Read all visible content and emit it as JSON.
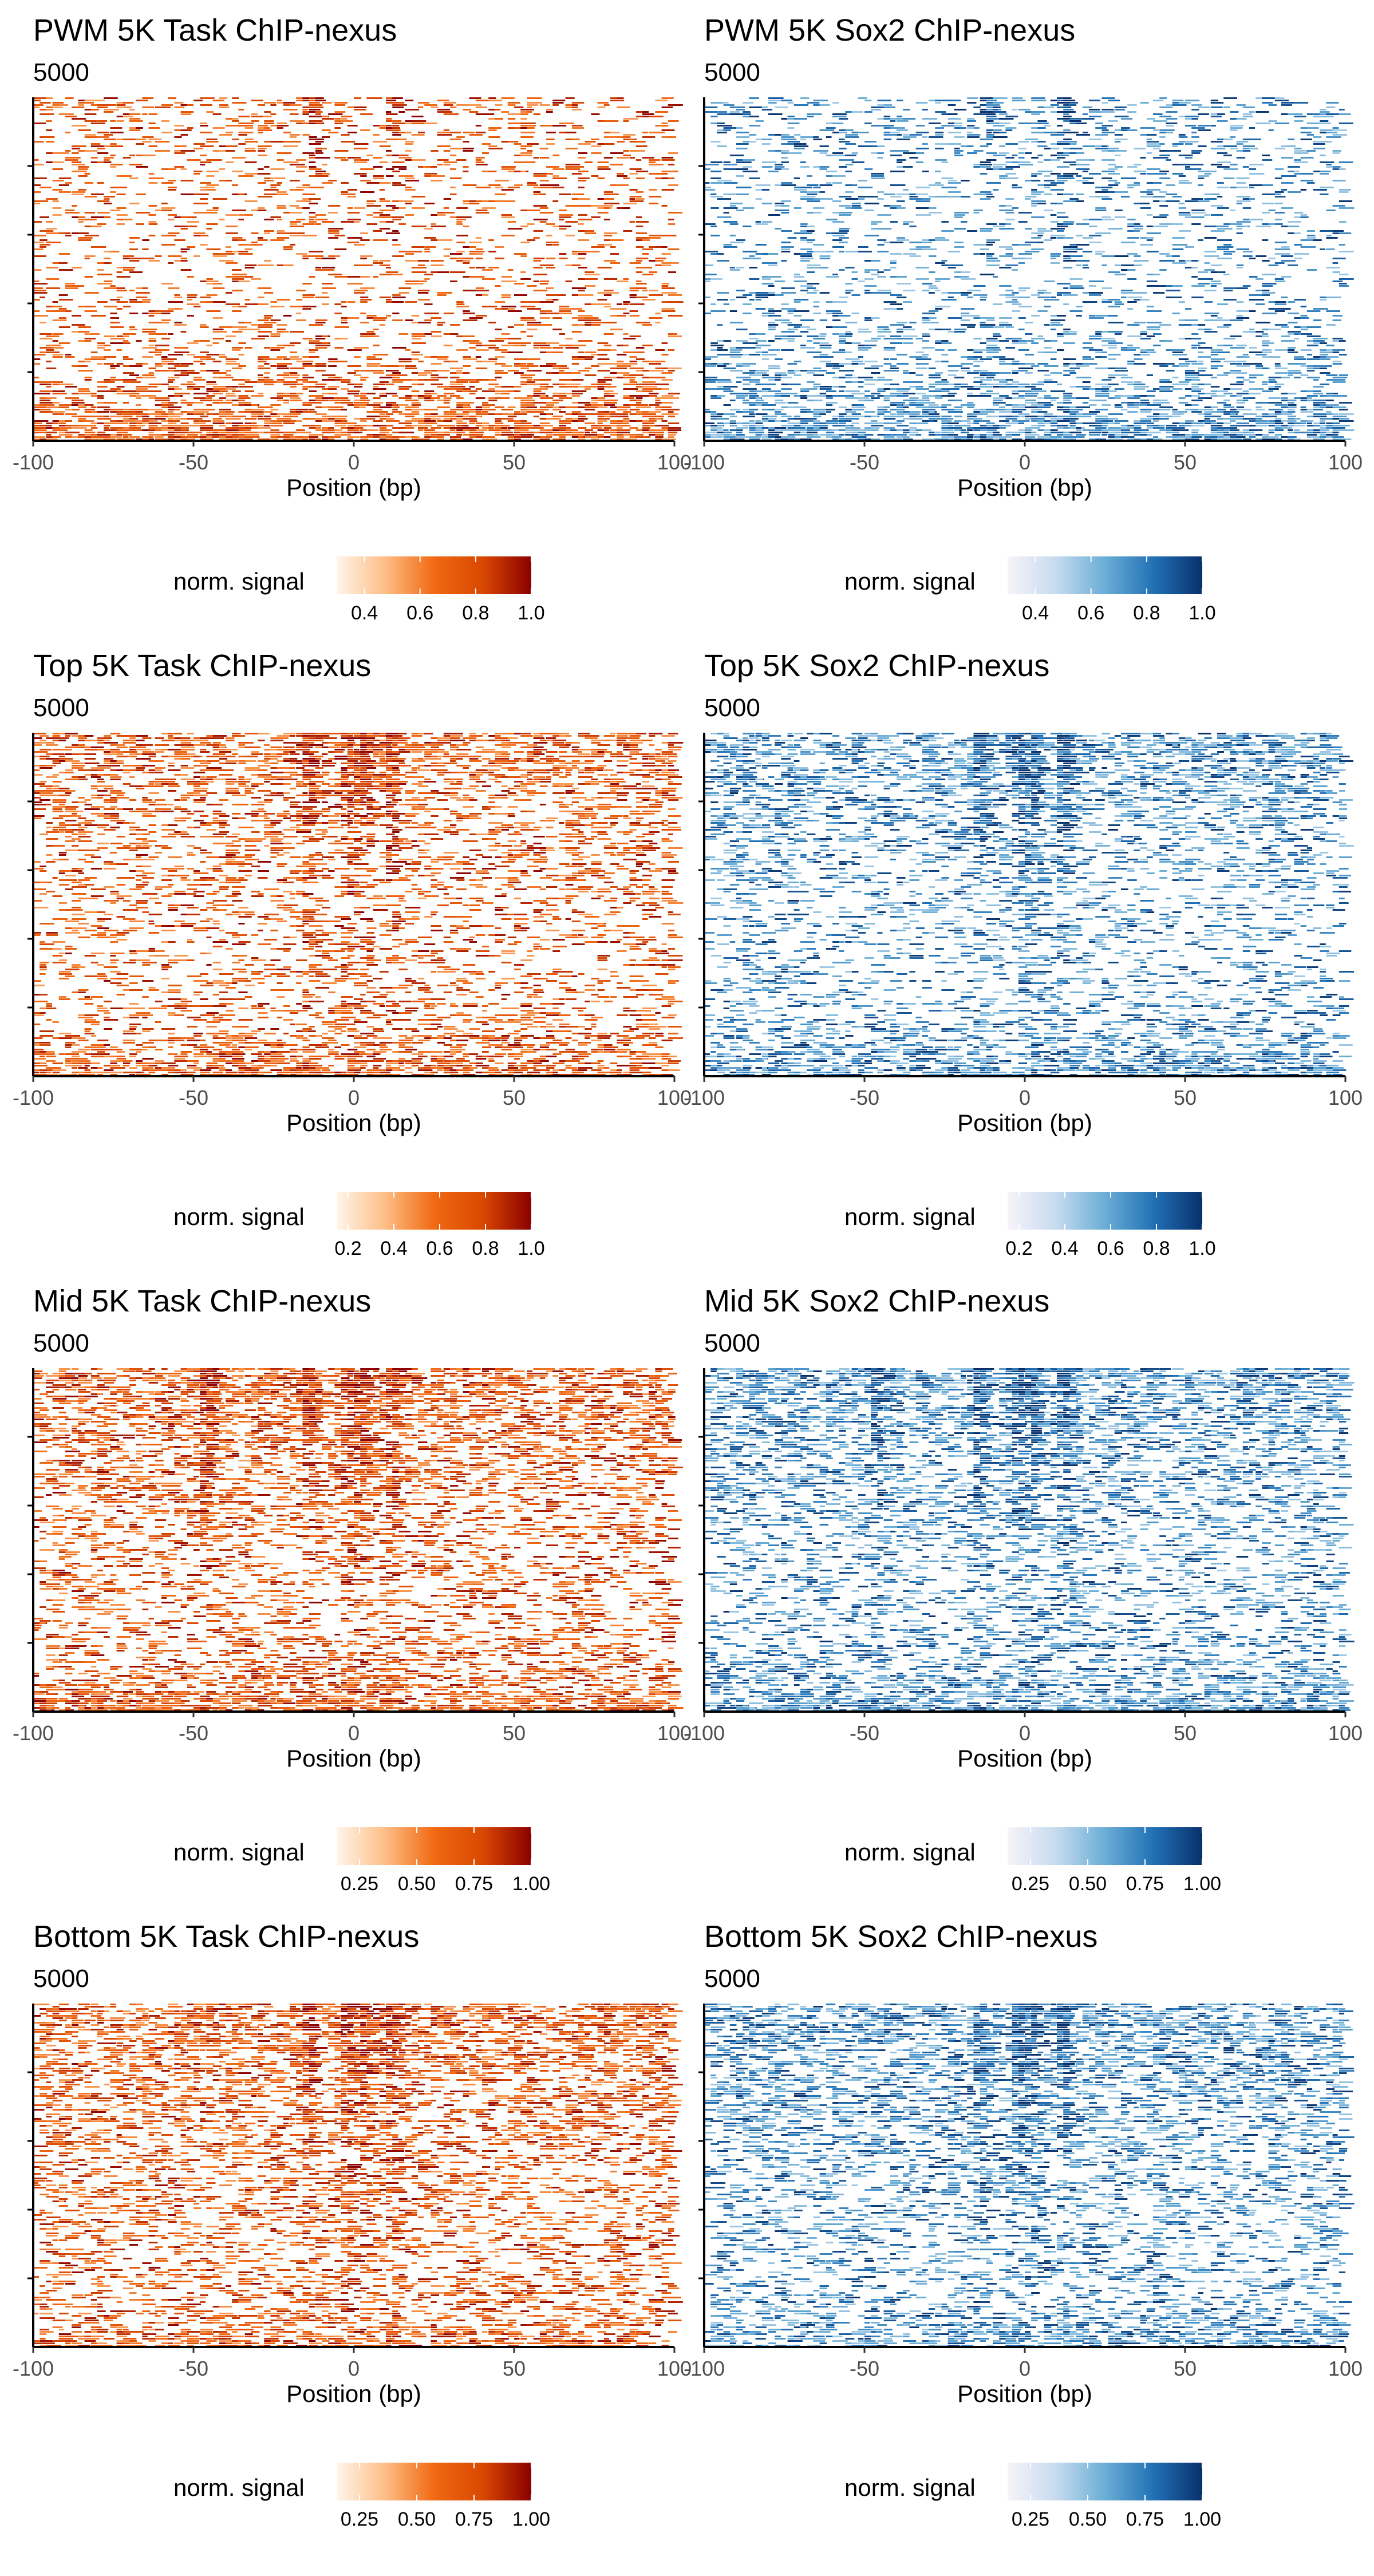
{
  "chart_data": [
    {
      "type": "heatmap",
      "title": "PWM 5K Task ChIP-nexus",
      "subtitle": "5000",
      "xlabel": "Position (bp)",
      "xlim": [
        -100,
        100
      ],
      "xticks": [
        "-100",
        "-50",
        "0",
        "50",
        "100"
      ],
      "ylim": [
        0,
        5000
      ],
      "legend_title": "norm. signal",
      "legend_placement": "bottom",
      "colorbar_range": [
        0.3,
        1.0
      ],
      "colorbar_ticks": [
        {
          "value": 0.4,
          "label": "0.4"
        },
        {
          "value": 0.6,
          "label": "0.6"
        },
        {
          "value": 0.8,
          "label": "0.8"
        },
        {
          "value": 1.0,
          "label": "1.0"
        }
      ],
      "colormap": [
        "#fff5eb",
        "#fdbe85",
        "#f16913",
        "#d94801",
        "#8b0000"
      ],
      "signal_peaks_bp": [
        -12,
        12
      ],
      "grid": false
    },
    {
      "type": "heatmap",
      "title": "PWM 5K Sox2 ChIP-nexus",
      "subtitle": "5000",
      "xlabel": "Position (bp)",
      "xlim": [
        -100,
        100
      ],
      "xticks": [
        "-100",
        "-50",
        "0",
        "50",
        "100"
      ],
      "ylim": [
        0,
        5000
      ],
      "legend_title": "norm. signal",
      "legend_placement": "bottom",
      "colorbar_range": [
        0.3,
        1.0
      ],
      "colorbar_ticks": [
        {
          "value": 0.4,
          "label": "0.4"
        },
        {
          "value": 0.6,
          "label": "0.6"
        },
        {
          "value": 0.8,
          "label": "0.8"
        },
        {
          "value": 1.0,
          "label": "1.0"
        }
      ],
      "colormap": [
        "#f7f4f9",
        "#c6dbef",
        "#6baed6",
        "#2171b5",
        "#08306b"
      ],
      "signal_peaks_bp": [
        -12,
        12
      ],
      "grid": false
    },
    {
      "type": "heatmap",
      "title": "Top 5K Task ChIP-nexus",
      "subtitle": "5000",
      "xlabel": "Position (bp)",
      "xlim": [
        -100,
        100
      ],
      "xticks": [
        "-100",
        "-50",
        "0",
        "50",
        "100"
      ],
      "ylim": [
        0,
        5000
      ],
      "legend_title": "norm. signal",
      "legend_placement": "bottom",
      "colorbar_range": [
        0.15,
        1.0
      ],
      "colorbar_ticks": [
        {
          "value": 0.2,
          "label": "0.2"
        },
        {
          "value": 0.4,
          "label": "0.4"
        },
        {
          "value": 0.6,
          "label": "0.6"
        },
        {
          "value": 0.8,
          "label": "0.8"
        },
        {
          "value": 1.0,
          "label": "1.0"
        }
      ],
      "colormap": [
        "#fff5eb",
        "#fdbe85",
        "#f16913",
        "#d94801",
        "#8b0000"
      ],
      "signal_peaks_bp": [
        -14,
        -2,
        3,
        12
      ],
      "grid": false
    },
    {
      "type": "heatmap",
      "title": "Top 5K Sox2 ChIP-nexus",
      "subtitle": "5000",
      "xlabel": "Position (bp)",
      "xlim": [
        -100,
        100
      ],
      "xticks": [
        "-100",
        "-50",
        "0",
        "50",
        "100"
      ],
      "ylim": [
        0,
        5000
      ],
      "legend_title": "norm. signal",
      "legend_placement": "bottom",
      "colorbar_range": [
        0.15,
        1.0
      ],
      "colorbar_ticks": [
        {
          "value": 0.2,
          "label": "0.2"
        },
        {
          "value": 0.4,
          "label": "0.4"
        },
        {
          "value": 0.6,
          "label": "0.6"
        },
        {
          "value": 0.8,
          "label": "0.8"
        },
        {
          "value": 1.0,
          "label": "1.0"
        }
      ],
      "colormap": [
        "#f7f4f9",
        "#c6dbef",
        "#6baed6",
        "#2171b5",
        "#08306b"
      ],
      "signal_peaks_bp": [
        -14,
        -2,
        3,
        12
      ],
      "grid": false
    },
    {
      "type": "heatmap",
      "title": "Mid 5K Task ChIP-nexus",
      "subtitle": "5000",
      "xlabel": "Position (bp)",
      "xlim": [
        -100,
        100
      ],
      "xticks": [
        "-100",
        "-50",
        "0",
        "50",
        "100"
      ],
      "ylim": [
        0,
        5000
      ],
      "legend_title": "norm. signal",
      "legend_placement": "bottom",
      "colorbar_range": [
        0.15,
        1.0
      ],
      "colorbar_ticks": [
        {
          "value": 0.25,
          "label": "0.25"
        },
        {
          "value": 0.5,
          "label": "0.50"
        },
        {
          "value": 0.75,
          "label": "0.75"
        },
        {
          "value": 1.0,
          "label": "1.00"
        }
      ],
      "colormap": [
        "#fff5eb",
        "#fdbe85",
        "#f16913",
        "#d94801",
        "#8b0000"
      ],
      "signal_peaks_bp": [
        -46,
        -14,
        -2,
        3,
        12
      ],
      "grid": false
    },
    {
      "type": "heatmap",
      "title": "Mid 5K Sox2 ChIP-nexus",
      "subtitle": "5000",
      "xlabel": "Position (bp)",
      "xlim": [
        -100,
        100
      ],
      "xticks": [
        "-100",
        "-50",
        "0",
        "50",
        "100"
      ],
      "ylim": [
        0,
        5000
      ],
      "legend_title": "norm. signal",
      "legend_placement": "bottom",
      "colorbar_range": [
        0.15,
        1.0
      ],
      "colorbar_ticks": [
        {
          "value": 0.25,
          "label": "0.25"
        },
        {
          "value": 0.5,
          "label": "0.50"
        },
        {
          "value": 0.75,
          "label": "0.75"
        },
        {
          "value": 1.0,
          "label": "1.00"
        }
      ],
      "colormap": [
        "#f7f4f9",
        "#c6dbef",
        "#6baed6",
        "#2171b5",
        "#08306b"
      ],
      "signal_peaks_bp": [
        -46,
        -14,
        -2,
        3,
        12
      ],
      "grid": false
    },
    {
      "type": "heatmap",
      "title": "Bottom 5K Task ChIP-nexus",
      "subtitle": "5000",
      "xlabel": "Position (bp)",
      "xlim": [
        -100,
        100
      ],
      "xticks": [
        "-100",
        "-50",
        "0",
        "50",
        "100"
      ],
      "ylim": [
        0,
        5000
      ],
      "legend_title": "norm. signal",
      "legend_placement": "bottom",
      "colorbar_range": [
        0.15,
        1.0
      ],
      "colorbar_ticks": [
        {
          "value": 0.25,
          "label": "0.25"
        },
        {
          "value": 0.5,
          "label": "0.50"
        },
        {
          "value": 0.75,
          "label": "0.75"
        },
        {
          "value": 1.0,
          "label": "1.00"
        }
      ],
      "colormap": [
        "#fff5eb",
        "#fdbe85",
        "#f16913",
        "#d94801",
        "#8b0000"
      ],
      "signal_peaks_bp": [
        -14,
        -2,
        3,
        12
      ],
      "grid": false
    },
    {
      "type": "heatmap",
      "title": "Bottom 5K Sox2 ChIP-nexus",
      "subtitle": "5000",
      "xlabel": "Position (bp)",
      "xlim": [
        -100,
        100
      ],
      "xticks": [
        "-100",
        "-50",
        "0",
        "50",
        "100"
      ],
      "ylim": [
        0,
        5000
      ],
      "legend_title": "norm. signal",
      "legend_placement": "bottom",
      "colorbar_range": [
        0.15,
        1.0
      ],
      "colorbar_ticks": [
        {
          "value": 0.25,
          "label": "0.25"
        },
        {
          "value": 0.5,
          "label": "0.50"
        },
        {
          "value": 0.75,
          "label": "0.75"
        },
        {
          "value": 1.0,
          "label": "1.00"
        }
      ],
      "colormap": [
        "#f7f4f9",
        "#c6dbef",
        "#6baed6",
        "#2171b5",
        "#08306b"
      ],
      "signal_peaks_bp": [
        -14,
        -2,
        3,
        12
      ],
      "grid": false
    }
  ]
}
